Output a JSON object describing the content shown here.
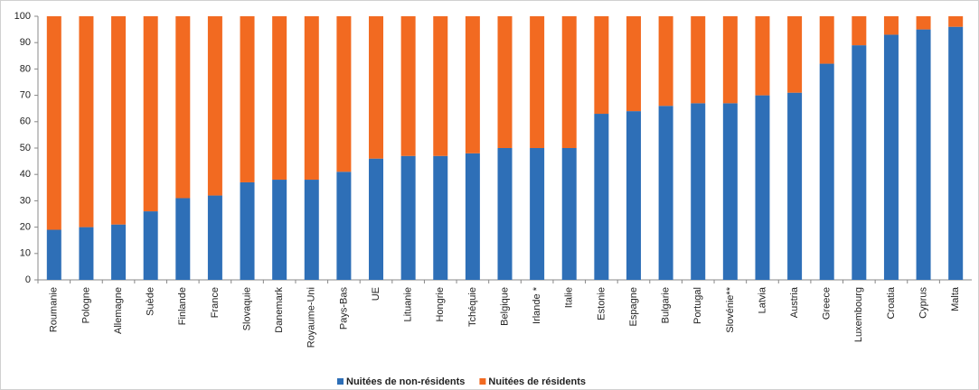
{
  "chart_data": {
    "type": "stacked_bar",
    "categories": [
      "Roumanie",
      "Pologne",
      "Allemagne",
      "Suède",
      "Finlande",
      "France",
      "Slovaquie",
      "Danemark",
      "Royaume-Uni",
      "Pays-Bas",
      "UE",
      "Lituanie",
      "Hongrie",
      "Tchéquie",
      "Belgique",
      "Irlande *",
      "Italie",
      "Estonie",
      "Espagne",
      "Bulgarie",
      "Portugal",
      "Slovénie**",
      "Latvia",
      "Austria",
      "Greece",
      "Luxembourg",
      "Croatia",
      "Cyprus",
      "Malta"
    ],
    "series": [
      {
        "name": "Nuitées de non-résidents",
        "color": "#2e6fb7",
        "values": [
          19,
          20,
          21,
          26,
          31,
          32,
          37,
          38,
          38,
          41,
          46,
          47,
          47,
          48,
          50,
          50,
          50,
          63,
          64,
          66,
          67,
          67,
          70,
          71,
          82,
          89,
          93,
          95,
          96
        ]
      },
      {
        "name": "Nuitées de résidents",
        "color": "#f26a21",
        "values": [
          81,
          80,
          79,
          74,
          69,
          68,
          63,
          62,
          62,
          59,
          54,
          53,
          53,
          52,
          50,
          50,
          50,
          37,
          36,
          34,
          33,
          33,
          30,
          29,
          18,
          11,
          7,
          5,
          4
        ]
      }
    ],
    "ylim": [
      0,
      100
    ],
    "yticks": [
      0,
      10,
      20,
      30,
      40,
      50,
      60,
      70,
      80,
      90,
      100
    ],
    "legend": "bottom"
  }
}
